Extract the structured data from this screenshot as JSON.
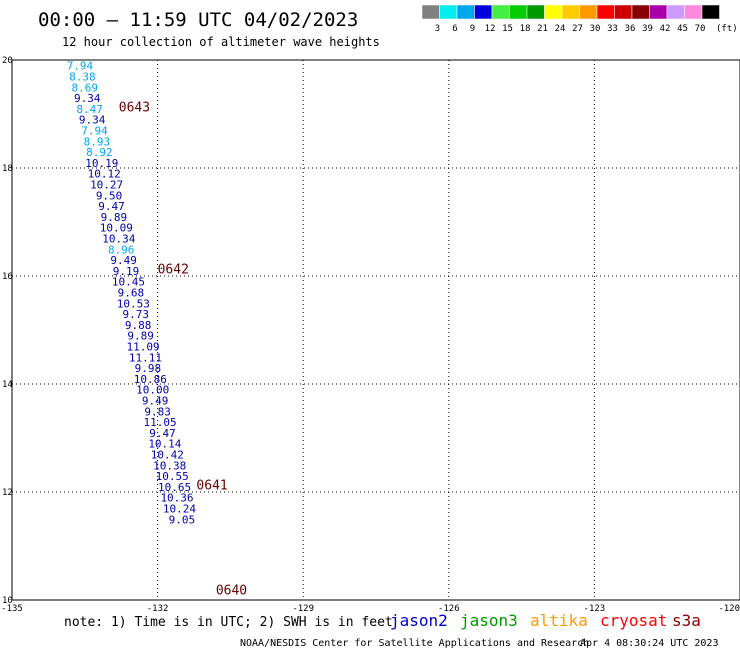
{
  "header": {
    "title": "00:00 – 11:59 UTC 04/02/2023",
    "subtitle": "12 hour collection of altimeter wave heights"
  },
  "legend": {
    "unit": "(ft)",
    "bins": [
      {
        "label": "3",
        "color": "#808080"
      },
      {
        "label": "6",
        "color": "#00eeee"
      },
      {
        "label": "9",
        "color": "#00a8ee"
      },
      {
        "label": "12",
        "color": "#0000dd"
      },
      {
        "label": "15",
        "color": "#44ee44"
      },
      {
        "label": "18",
        "color": "#00cc00"
      },
      {
        "label": "21",
        "color": "#009900"
      },
      {
        "label": "24",
        "color": "#ffff00"
      },
      {
        "label": "27",
        "color": "#ffcc00"
      },
      {
        "label": "30",
        "color": "#ff9900"
      },
      {
        "label": "33",
        "color": "#ff0000"
      },
      {
        "label": "36",
        "color": "#cc0000"
      },
      {
        "label": "39",
        "color": "#880000"
      },
      {
        "label": "42",
        "color": "#aa00aa"
      },
      {
        "label": "45",
        "color": "#cc99ff"
      },
      {
        "label": "70",
        "color": "#ff88dd"
      },
      {
        "label": "",
        "color": "#000000"
      }
    ]
  },
  "map": {
    "lon_range": [
      -135,
      -120
    ],
    "lat_range": [
      10,
      20
    ],
    "lon_ticks": [
      "-135",
      "-132",
      "-129",
      "-126",
      "-123",
      "-120"
    ],
    "lat_ticks": [
      "20",
      "18",
      "16",
      "14",
      "12",
      "10"
    ],
    "grid_lons": [
      -132,
      -129,
      -126,
      -123
    ],
    "grid_lats": [
      18,
      16,
      14,
      12
    ]
  },
  "measurements": [
    {
      "lon": -133.6,
      "lat": 19.82,
      "swh": "7.94",
      "color": "#00a8ee"
    },
    {
      "lon": -133.55,
      "lat": 19.62,
      "swh": "8.38",
      "color": "#00a8ee"
    },
    {
      "lon": -133.5,
      "lat": 19.42,
      "swh": "8.69",
      "color": "#00a8ee"
    },
    {
      "lon": -133.45,
      "lat": 19.22,
      "swh": "9.34",
      "color": "#0000aa"
    },
    {
      "lon": -133.4,
      "lat": 19.02,
      "swh": "8.47",
      "color": "#00a8ee"
    },
    {
      "lon": -133.35,
      "lat": 18.82,
      "swh": "9.34",
      "color": "#0000aa"
    },
    {
      "lon": -133.3,
      "lat": 18.62,
      "swh": "7.94",
      "color": "#00a8ee"
    },
    {
      "lon": -133.25,
      "lat": 18.42,
      "swh": "8.93",
      "color": "#00a8ee"
    },
    {
      "lon": -133.2,
      "lat": 18.22,
      "swh": "8.92",
      "color": "#00a8ee"
    },
    {
      "lon": -133.15,
      "lat": 18.02,
      "swh": "10.19",
      "color": "#0000aa"
    },
    {
      "lon": -133.1,
      "lat": 17.82,
      "swh": "10.12",
      "color": "#0000aa"
    },
    {
      "lon": -133.05,
      "lat": 17.62,
      "swh": "10.27",
      "color": "#0000aa"
    },
    {
      "lon": -133.0,
      "lat": 17.42,
      "swh": "9.50",
      "color": "#0000aa"
    },
    {
      "lon": -132.95,
      "lat": 17.22,
      "swh": "9.47",
      "color": "#0000aa"
    },
    {
      "lon": -132.9,
      "lat": 17.02,
      "swh": "9.89",
      "color": "#0000aa"
    },
    {
      "lon": -132.85,
      "lat": 16.82,
      "swh": "10.09",
      "color": "#0000aa"
    },
    {
      "lon": -132.8,
      "lat": 16.62,
      "swh": "10.34",
      "color": "#0000aa"
    },
    {
      "lon": -132.75,
      "lat": 16.42,
      "swh": "8.96",
      "color": "#00a8ee"
    },
    {
      "lon": -132.7,
      "lat": 16.22,
      "swh": "9.49",
      "color": "#0000aa"
    },
    {
      "lon": -132.65,
      "lat": 16.02,
      "swh": "9.19",
      "color": "#0000aa"
    },
    {
      "lon": -132.6,
      "lat": 15.82,
      "swh": "10.45",
      "color": "#0000aa"
    },
    {
      "lon": -132.55,
      "lat": 15.62,
      "swh": "9.68",
      "color": "#0000aa"
    },
    {
      "lon": -132.5,
      "lat": 15.42,
      "swh": "10.53",
      "color": "#0000aa"
    },
    {
      "lon": -132.45,
      "lat": 15.22,
      "swh": "9.73",
      "color": "#0000aa"
    },
    {
      "lon": -132.4,
      "lat": 15.02,
      "swh": "9.88",
      "color": "#0000aa"
    },
    {
      "lon": -132.35,
      "lat": 14.82,
      "swh": "9.89",
      "color": "#0000aa"
    },
    {
      "lon": -132.3,
      "lat": 14.62,
      "swh": "11.09",
      "color": "#0000aa"
    },
    {
      "lon": -132.25,
      "lat": 14.42,
      "swh": "11.11",
      "color": "#0000aa"
    },
    {
      "lon": -132.2,
      "lat": 14.22,
      "swh": "9.98",
      "color": "#0000aa"
    },
    {
      "lon": -132.15,
      "lat": 14.02,
      "swh": "10.86",
      "color": "#0000aa"
    },
    {
      "lon": -132.1,
      "lat": 13.82,
      "swh": "10.00",
      "color": "#0000aa"
    },
    {
      "lon": -132.05,
      "lat": 13.62,
      "swh": "9.49",
      "color": "#0000aa"
    },
    {
      "lon": -132.0,
      "lat": 13.42,
      "swh": "9.83",
      "color": "#0000aa"
    },
    {
      "lon": -131.95,
      "lat": 13.22,
      "swh": "11.05",
      "color": "#0000aa"
    },
    {
      "lon": -131.9,
      "lat": 13.02,
      "swh": "9.47",
      "color": "#0000aa"
    },
    {
      "lon": -131.85,
      "lat": 12.82,
      "swh": "10.14",
      "color": "#0000aa"
    },
    {
      "lon": -131.8,
      "lat": 12.62,
      "swh": "10.42",
      "color": "#0000aa"
    },
    {
      "lon": -131.75,
      "lat": 12.42,
      "swh": "10.38",
      "color": "#0000aa"
    },
    {
      "lon": -131.7,
      "lat": 12.22,
      "swh": "10.55",
      "color": "#0000aa"
    },
    {
      "lon": -131.65,
      "lat": 12.02,
      "swh": "10.65",
      "color": "#0000aa"
    },
    {
      "lon": -131.6,
      "lat": 11.82,
      "swh": "10.36",
      "color": "#0000aa"
    },
    {
      "lon": -131.55,
      "lat": 11.62,
      "swh": "10.24",
      "color": "#0000aa"
    },
    {
      "lon": -131.5,
      "lat": 11.42,
      "swh": "9.05",
      "color": "#0000aa"
    }
  ],
  "time_labels": [
    {
      "lon": -132.8,
      "lat": 19.05,
      "text": "0643"
    },
    {
      "lon": -132.0,
      "lat": 16.05,
      "text": "0642"
    },
    {
      "lon": -131.2,
      "lat": 12.05,
      "text": "0641"
    },
    {
      "lon": -130.8,
      "lat": 10.1,
      "text": "0640"
    }
  ],
  "note": "note:  1) Time is in UTC; 2) SWH is in feet",
  "missions": [
    {
      "name": "jason2",
      "color": "#0000cc"
    },
    {
      "name": "jason3",
      "color": "#009900"
    },
    {
      "name": "altika",
      "color": "#ff9900"
    },
    {
      "name": "cryosat",
      "color": "#ff0000"
    },
    {
      "name": "s3a",
      "color": "#880000"
    }
  ],
  "footer": {
    "source": "NOAA/NESDIS Center for Satellite Applications and Research",
    "timestamp": "Apr  4 08:30:24 UTC 2023"
  }
}
